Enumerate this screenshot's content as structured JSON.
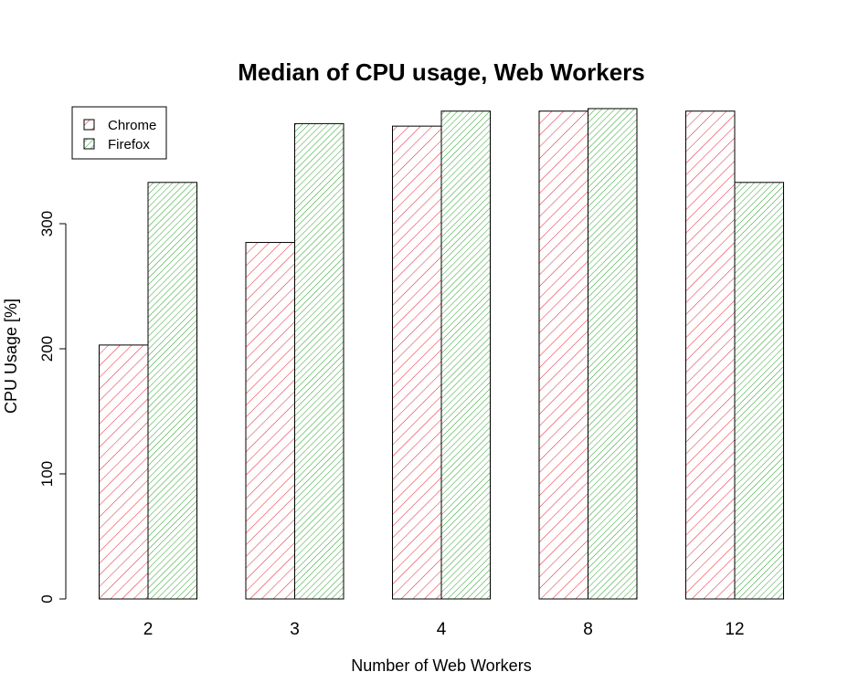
{
  "chart_data": {
    "type": "bar",
    "title": "Median of CPU usage, Web Workers",
    "xlabel": "Number of Web Workers",
    "ylabel": "CPU Usage [%]",
    "categories": [
      "2",
      "3",
      "4",
      "8",
      "12"
    ],
    "series": [
      {
        "name": "Chrome",
        "values": [
          203,
          285,
          378,
          390,
          390
        ],
        "color": "#e8202a"
      },
      {
        "name": "Firefox",
        "values": [
          333,
          380,
          390,
          392,
          333
        ],
        "color": "#2aa02a"
      }
    ],
    "yticks": [
      0,
      100,
      200,
      300
    ],
    "ylim": [
      0,
      400
    ],
    "legend_position": "top-left",
    "grid": false,
    "fill_pattern": "diagonal-hatch"
  }
}
